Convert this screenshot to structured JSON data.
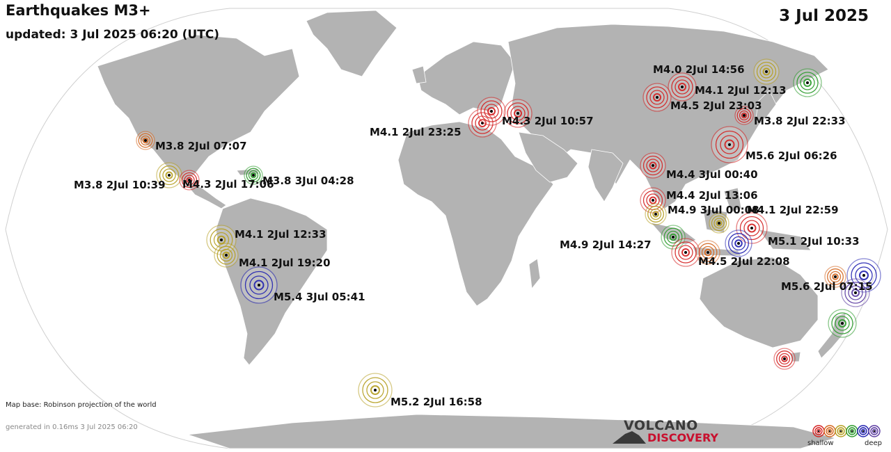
{
  "header": {
    "title": "Earthquakes M3+",
    "updated": "updated:  3 Jul 2025 06:20 (UTC)",
    "date": "3 Jul 2025"
  },
  "footer": {
    "map_base": "Map base: Robinson projection of the world",
    "generated": "generated in 0.16ms  3 Jul 2025 06:20"
  },
  "logo": {
    "line1": "VOLCANO",
    "line2": "DISCOVERY"
  },
  "legend": {
    "shallow": "shallow",
    "deep": "deep",
    "depth_colors": [
      "#d42020",
      "#d4661e",
      "#b59e20",
      "#2a9a2a",
      "#2020b0",
      "#5a3aa0"
    ]
  },
  "colors": {
    "land": "#b3b3b3",
    "ocean": "#ffffff",
    "accent": "#c8102e"
  },
  "quakes": [
    {
      "label": "M4.0  2Jul 14:56",
      "depth": "medium",
      "color": "#b59e20"
    },
    {
      "label": "M4.1  2Jul 12:13",
      "depth": "shallow",
      "color": "#d42020"
    },
    {
      "label": "M4.5  2Jul 23:03",
      "depth": "shallow",
      "color": "#d42020"
    },
    {
      "label": "M3.8  2Jul 22:33",
      "depth": "shallow",
      "color": "#d42020"
    },
    {
      "label": "M5.6  2Jul 06:26",
      "depth": "shallow",
      "color": "#d42020"
    },
    {
      "label": "M4.4  3Jul 00:40",
      "depth": "shallow",
      "color": "#d42020"
    },
    {
      "label": "M4.4  2Jul 13:06",
      "depth": "shallow",
      "color": "#d42020"
    },
    {
      "label": "M4.9  3Jul 00:08",
      "depth": "medium",
      "color": "#b59e20"
    },
    {
      "label": "M4.1  2Jul 22:59",
      "depth": "shallow",
      "color": "#d42020"
    },
    {
      "label": "M5.1  2Jul 10:33",
      "depth": "deep",
      "color": "#2020b0"
    },
    {
      "label": "M4.9  2Jul 14:27",
      "depth": "intermediate",
      "color": "#2a9a2a"
    },
    {
      "label": "M4.5  2Jul 22:08",
      "depth": "shallow",
      "color": "#d4661e"
    },
    {
      "label": "M5.6  2Jul 07:15",
      "depth": "deep",
      "color": "#2020b0"
    },
    {
      "label": "M4.1  2Jul 23:25",
      "depth": "shallow",
      "color": "#d42020"
    },
    {
      "label": "M4.3  2Jul 10:57",
      "depth": "shallow",
      "color": "#d42020"
    },
    {
      "label": "M3.8  2Jul 07:07",
      "depth": "shallow",
      "color": "#d4661e"
    },
    {
      "label": "M3.8  2Jul 10:39",
      "depth": "medium",
      "color": "#b59e20"
    },
    {
      "label": "M4.3  2Jul 17:06",
      "depth": "shallow",
      "color": "#d42020"
    },
    {
      "label": "M3.8  3Jul 04:28",
      "depth": "intermediate",
      "color": "#2a9a2a"
    },
    {
      "label": "M4.1  2Jul 12:33",
      "depth": "medium",
      "color": "#b59e20"
    },
    {
      "label": "M4.1  2Jul 19:20",
      "depth": "medium",
      "color": "#b59e20"
    },
    {
      "label": "M5.4  3Jul 05:41",
      "depth": "deep",
      "color": "#2020b0"
    },
    {
      "label": "M5.2  2Jul 16:58",
      "depth": "medium",
      "color": "#b59e20"
    },
    {
      "label": "",
      "depth": "intermediate",
      "color": "#2a9a2a"
    },
    {
      "label": "",
      "depth": "intermediate",
      "color": "#2a9a2a"
    },
    {
      "label": "",
      "depth": "shallow",
      "color": "#d42020"
    },
    {
      "label": "",
      "depth": "deep",
      "color": "#5a3aa0"
    },
    {
      "label": "",
      "depth": "shallow",
      "color": "#d42020"
    },
    {
      "label": "",
      "depth": "shallow",
      "color": "#d4661e"
    },
    {
      "label": "",
      "depth": "medium",
      "color": "#b59e20"
    },
    {
      "label": "",
      "depth": "shallow",
      "color": "#d42020"
    }
  ]
}
